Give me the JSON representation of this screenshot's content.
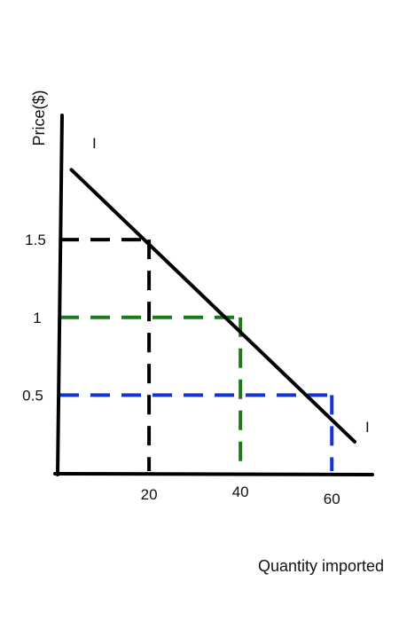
{
  "chart_data": {
    "type": "line",
    "title": "",
    "xlabel": "Quantity imported",
    "ylabel": "Price($)",
    "xlim": [
      0,
      65
    ],
    "ylim": [
      0,
      2.3
    ],
    "grid": false,
    "y_ticks": [
      {
        "value": 1.5,
        "label": "1.5"
      },
      {
        "value": 1,
        "label": "1"
      },
      {
        "value": 0.5,
        "label": "0.5"
      }
    ],
    "x_ticks": [
      {
        "value": 20,
        "label": "20"
      },
      {
        "value": 40,
        "label": "40"
      },
      {
        "value": 60,
        "label": "60"
      }
    ],
    "series": [
      {
        "name": "I",
        "color": "#000000",
        "style": "solid",
        "points": [
          {
            "x": 3,
            "y": 1.95
          },
          {
            "x": 65,
            "y": 0.2
          }
        ]
      }
    ],
    "curve_labels": [
      {
        "text": "I",
        "at": "start"
      },
      {
        "text": "I",
        "at": "end"
      }
    ],
    "reference_points": [
      {
        "x": 20,
        "y": 1.5,
        "color": "#000000"
      },
      {
        "x": 40,
        "y": 1,
        "color": "#1a7a1a"
      },
      {
        "x": 60,
        "y": 0.5,
        "color": "#1433d6"
      }
    ]
  }
}
